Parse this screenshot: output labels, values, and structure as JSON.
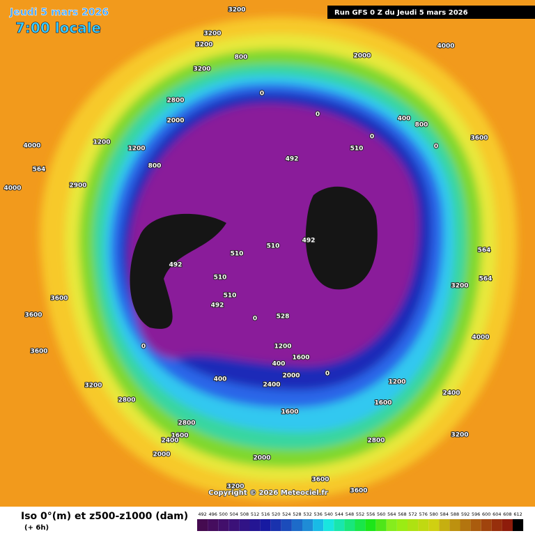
{
  "header": {
    "date": "Jeudi 5 mars 2026",
    "time": "7:00 locale",
    "run": "Run GFS 0 Z du Jeudi 5 mars 2026"
  },
  "map": {
    "contour_labels": [
      "3200",
      "3200",
      "3200",
      "3200",
      "800",
      "2800",
      "2000",
      "1200",
      "1200",
      "4000",
      "4000",
      "564",
      "2900",
      "3600",
      "3600",
      "3600",
      "3200",
      "2800",
      "1600",
      "2000",
      "2400",
      "2800",
      "3200",
      "3600",
      "3600",
      "2800",
      "2000",
      "1600",
      "800",
      "0",
      "0",
      "0",
      "400",
      "800",
      "0",
      "492",
      "492",
      "492",
      "492",
      "510",
      "510",
      "510",
      "510",
      "510",
      "400",
      "0",
      "0",
      "400",
      "1200",
      "1600",
      "2000",
      "2400",
      "3200",
      "4000",
      "3600",
      "3200",
      "2400",
      "564",
      "564",
      "4000",
      "528",
      "0",
      "1200",
      "1600",
      "2000"
    ],
    "copyright": "Copyright © 2026 Meteociel.fr"
  },
  "footer": {
    "title": "Iso 0°(m) et z500-z1000 (dam)",
    "lead": "(+ 6h)",
    "scale": [
      492,
      496,
      500,
      504,
      508,
      512,
      516,
      520,
      524,
      528,
      532,
      536,
      540,
      544,
      548,
      552,
      556,
      560,
      564,
      568,
      572,
      576,
      580,
      584,
      588,
      592,
      596,
      600,
      604,
      608,
      612
    ]
  }
}
